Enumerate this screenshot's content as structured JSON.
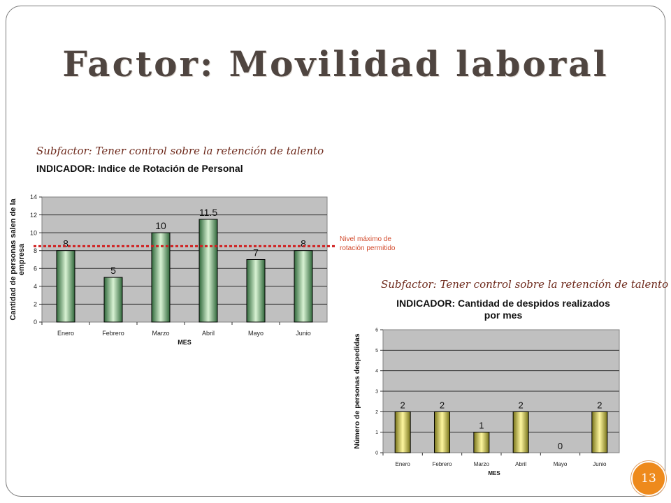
{
  "slide": {
    "title": "Factor: Movilidad laboral",
    "page_number": "13",
    "accent_color": "#ee8a1c",
    "title_color": "#4f4540"
  },
  "left_block": {
    "subfactor": "Subfactor: Tener control sobre la retención de talento",
    "indicator": "INDICADOR: Indice de Rotación de Personal",
    "annotation": "Nivel máximo de rotación permitido"
  },
  "right_block": {
    "subfactor": "Subfactor: Tener control sobre la retención de talento",
    "indicator_line1": "INDICADOR: Cantidad de despidos realizados",
    "indicator_line2": "por mes"
  },
  "chart_data": [
    {
      "type": "bar",
      "categories": [
        "Enero",
        "Febrero",
        "Marzo",
        "Abril",
        "Mayo",
        "Junio"
      ],
      "values": [
        8,
        5,
        10,
        11.5,
        7,
        8
      ],
      "value_labels": [
        "8",
        "5",
        "10",
        "11.5",
        "7",
        "8"
      ],
      "xlabel": "MES",
      "ylabel": "Cantidad de personas salen de la empresa",
      "ylim": [
        0,
        14
      ],
      "yticks": [
        0,
        2,
        4,
        6,
        8,
        10,
        12,
        14
      ],
      "threshold": 8.5,
      "grid": true,
      "bar_color": "#4f8a4f",
      "threshold_color": "#d02020"
    },
    {
      "type": "bar",
      "categories": [
        "Enero",
        "Febrero",
        "Marzo",
        "Abril",
        "Mayo",
        "Junio"
      ],
      "values": [
        2,
        2,
        1,
        2,
        0,
        2
      ],
      "value_labels": [
        "2",
        "2",
        "1",
        "2",
        "0",
        "2"
      ],
      "xlabel": "MES",
      "ylabel": "Número de personas despedidas",
      "ylim": [
        0,
        6
      ],
      "yticks": [
        0,
        1,
        2,
        3,
        4,
        5,
        6
      ],
      "grid": true,
      "bar_color": "#d8d040"
    }
  ]
}
